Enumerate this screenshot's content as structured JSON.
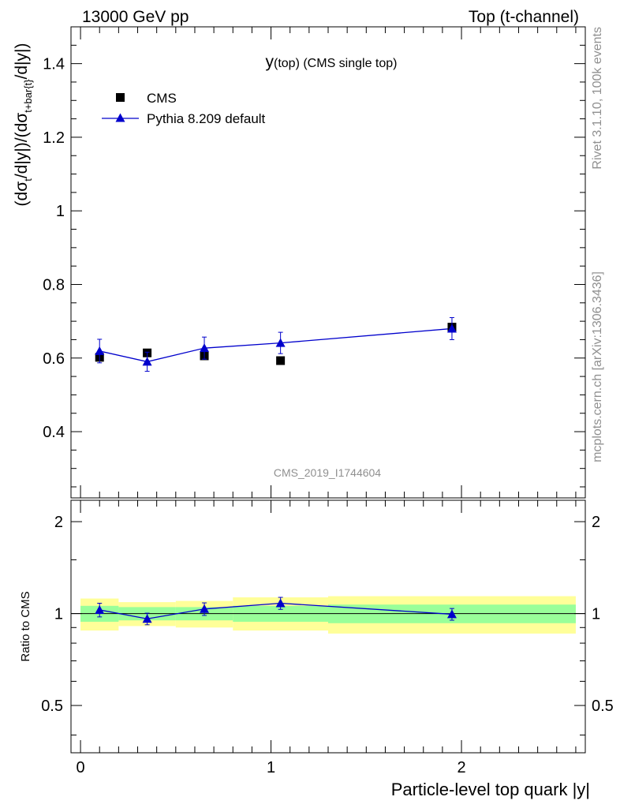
{
  "header": {
    "left": "13000 GeV pp",
    "right": "Top (t-channel)"
  },
  "side_text": {
    "rivet": "Rivet 3.1.10,  100k events",
    "source": "mcplots.cern.ch [arXiv:1306.3436]"
  },
  "watermark": "CMS_2019_I1744604",
  "chart_data": [
    {
      "type": "scatter",
      "title": "y(top) (CMS single top)",
      "title_main": "y",
      "title_sub": "(top)",
      "title_rest": " (CMS single top)",
      "ylabel": "(dσ_t/d|y|)/(dσ_{t+bar{t}}/d|y|)",
      "ylabel_parts": {
        "a": "(dσ",
        "a_sub": "t",
        "b": "/d|y|)/(dσ",
        "b_sub": "t+bar{t}",
        "c": "/d|y|)"
      },
      "xlim": [
        -0.05,
        2.65
      ],
      "ylim": [
        0.22,
        1.5
      ],
      "yticks": [
        0.4,
        0.6,
        0.8,
        1.0,
        1.2,
        1.4
      ],
      "ytick_labels": [
        "0.4",
        "0.6",
        "0.8",
        "1",
        "1.2",
        "1.4"
      ],
      "legend_position": "top-left",
      "series": [
        {
          "name": "CMS",
          "marker": "square",
          "color": "#000000",
          "x": [
            0.1,
            0.35,
            0.65,
            1.05,
            1.95
          ],
          "y": [
            0.602,
            0.614,
            0.606,
            0.593,
            0.684
          ],
          "yerr": [
            0.012,
            0.01,
            0.01,
            0.008,
            0.012
          ]
        },
        {
          "name": "Pythia 8.209 default",
          "marker": "triangle",
          "color": "#0000cc",
          "x": [
            0.1,
            0.35,
            0.65,
            1.05,
            1.95
          ],
          "y": [
            0.619,
            0.59,
            0.627,
            0.641,
            0.68
          ],
          "yerr": [
            0.032,
            0.026,
            0.03,
            0.029,
            0.03
          ]
        }
      ]
    },
    {
      "type": "scatter",
      "ylabel": "Ratio to CMS",
      "xlabel": "Particle-level top quark |y|",
      "xlim": [
        -0.05,
        2.65
      ],
      "ylim": [
        0.35,
        2.35
      ],
      "yticks": [
        0.5,
        1.0,
        2.0
      ],
      "ytick_labels": [
        "0.5",
        "1",
        "2"
      ],
      "xticks": [
        0,
        1,
        2
      ],
      "xtick_labels": [
        "0",
        "1",
        "2"
      ],
      "bands": [
        {
          "x0": 0.0,
          "x1": 0.2,
          "inner": [
            0.94,
            1.06
          ],
          "outer": [
            0.88,
            1.12
          ]
        },
        {
          "x0": 0.2,
          "x1": 0.5,
          "inner": [
            0.95,
            1.05
          ],
          "outer": [
            0.91,
            1.09
          ]
        },
        {
          "x0": 0.5,
          "x1": 0.8,
          "inner": [
            0.95,
            1.05
          ],
          "outer": [
            0.9,
            1.1
          ]
        },
        {
          "x0": 0.8,
          "x1": 1.3,
          "inner": [
            0.94,
            1.06
          ],
          "outer": [
            0.88,
            1.13
          ]
        },
        {
          "x0": 1.3,
          "x1": 2.6,
          "inner": [
            0.93,
            1.07
          ],
          "outer": [
            0.86,
            1.14
          ]
        }
      ],
      "series": [
        {
          "name": "Pythia 8.209 default",
          "marker": "triangle",
          "color": "#0000cc",
          "x": [
            0.1,
            0.35,
            0.65,
            1.05,
            1.95
          ],
          "y": [
            1.028,
            0.961,
            1.035,
            1.081,
            0.995
          ],
          "yerr": [
            0.053,
            0.042,
            0.049,
            0.049,
            0.044
          ]
        }
      ]
    }
  ],
  "colors": {
    "band_inner": "#99ff99",
    "band_outer": "#ffff99",
    "data": "#000000",
    "mc": "#0000cc",
    "side_text": "#909090",
    "watermark": "#909090"
  }
}
